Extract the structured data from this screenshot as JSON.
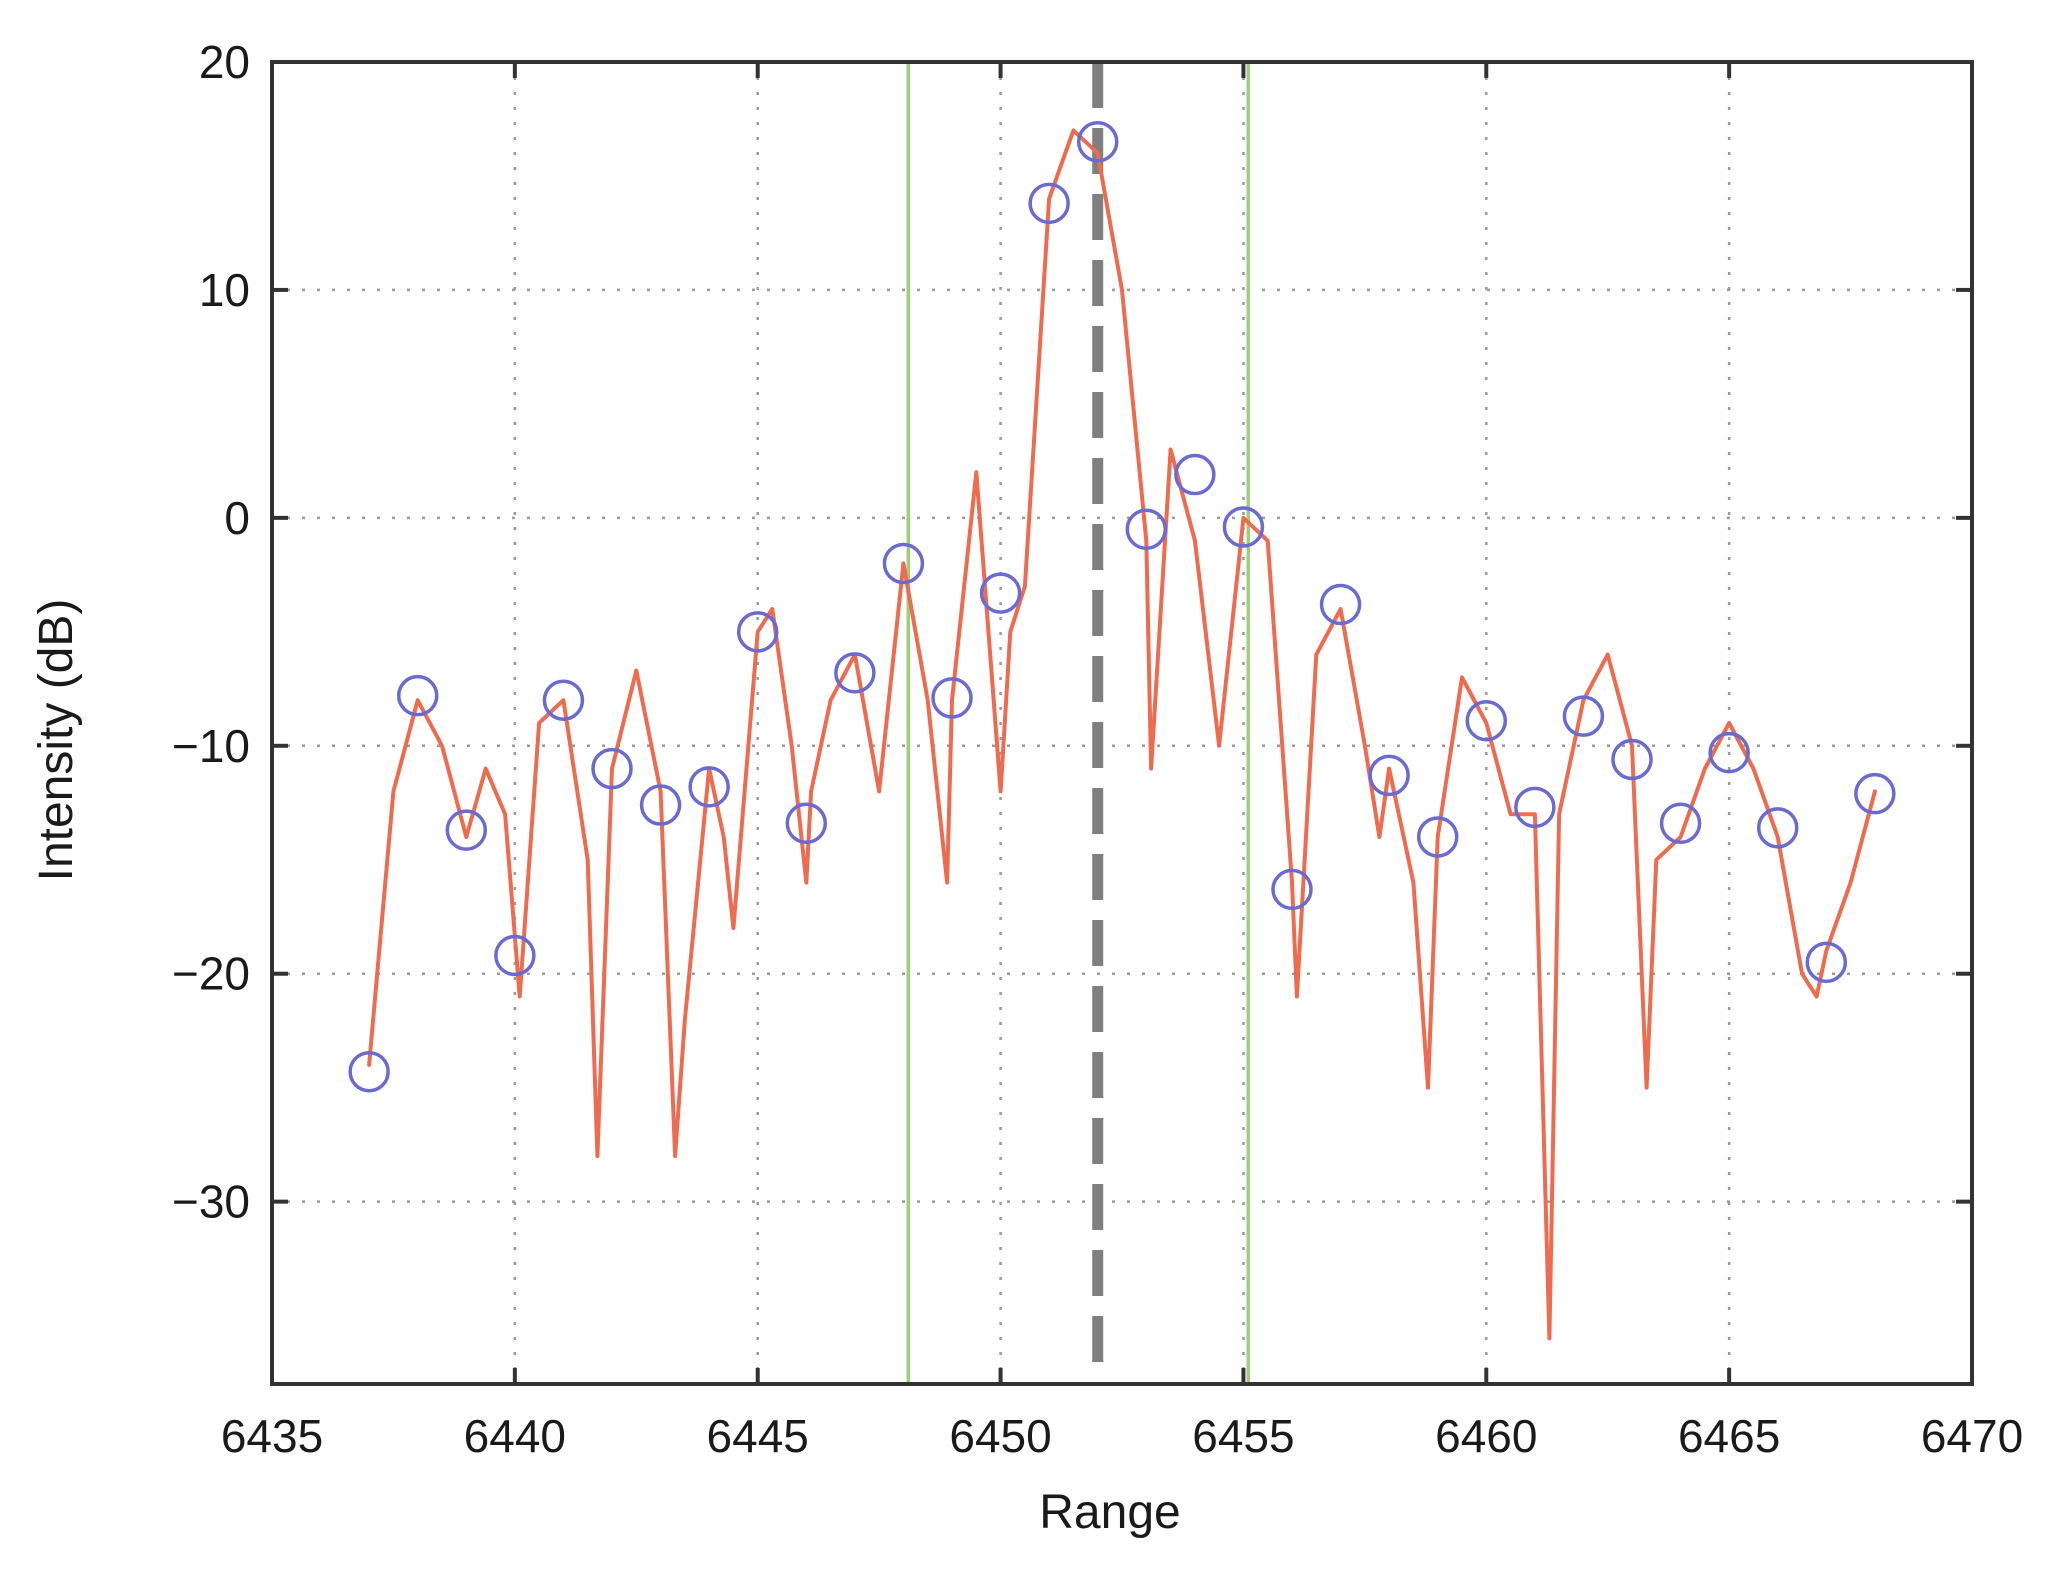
{
  "chart_data": {
    "type": "line",
    "title": "",
    "xlabel": "Range",
    "ylabel": "Intensity (dB)",
    "xlim": [
      6435,
      6470
    ],
    "ylim": [
      -38,
      20
    ],
    "xticks": [
      6435,
      6440,
      6445,
      6450,
      6455,
      6460,
      6465,
      6470
    ],
    "yticks": [
      20,
      10,
      0,
      -10,
      -20,
      -30
    ],
    "ytick_labels": [
      "20",
      "10",
      "0",
      "−10",
      "−20",
      "−30"
    ],
    "grid": true,
    "legend": "none",
    "colors": {
      "line": "#ef6b4f",
      "markers": "#6a6ad0",
      "center_line": "#7f7f7f",
      "bounds": "#9ccf7a",
      "grid": "#9a9a9a",
      "axes": "#333333"
    },
    "series": [
      {
        "kind": "line",
        "x": [
          6437,
          6437.5,
          6438,
          6438.5,
          6439,
          6439.4,
          6439.8,
          6440.1,
          6440.5,
          6441,
          6441.5,
          6441.7,
          6442,
          6442.5,
          6443,
          6443.3,
          6443.5,
          6444,
          6444.3,
          6444.5,
          6445,
          6445.3,
          6445.7,
          6446,
          6446.1,
          6446.5,
          6447,
          6447.5,
          6448,
          6448.5,
          6448.9,
          6449,
          6449.5,
          6450,
          6450.2,
          6450.5,
          6451,
          6451.5,
          6452,
          6452.5,
          6453,
          6453.1,
          6453.5,
          6454,
          6454.5,
          6454.9,
          6455,
          6455.5,
          6456,
          6456.1,
          6456.5,
          6457,
          6457.5,
          6457.8,
          6458,
          6458.5,
          6458.8,
          6459,
          6459.5,
          6460,
          6460.5,
          6461,
          6461.3,
          6461.5,
          6462,
          6462.5,
          6463,
          6463.3,
          6463.5,
          6464,
          6464.5,
          6465,
          6465.5,
          6466,
          6466.5,
          6466.8,
          6467,
          6467.5,
          6468
        ],
        "y": [
          -24,
          -12,
          -8,
          -10,
          -14,
          -11,
          -13,
          -21,
          -9,
          -8,
          -15,
          -28,
          -11,
          -6.7,
          -12,
          -28,
          -22,
          -11,
          -14,
          -18,
          -5,
          -4,
          -10,
          -16,
          -12,
          -8,
          -6,
          -12,
          -2,
          -8,
          -16,
          -8,
          2,
          -12,
          -5,
          -3,
          14,
          17,
          16,
          10,
          -1,
          -11,
          3,
          -1,
          -10,
          -2,
          0,
          -1,
          -16,
          -21,
          -6,
          -4,
          -10,
          -14,
          -11,
          -16,
          -25,
          -14,
          -7,
          -9,
          -13,
          -13,
          -36,
          -13,
          -8,
          -6,
          -10,
          -25,
          -15,
          -14,
          -11,
          -9,
          -11,
          -14,
          -20,
          -21,
          -19,
          -16,
          -12
        ]
      },
      {
        "kind": "scatter",
        "x": [
          6437,
          6438,
          6439,
          6440,
          6441,
          6442,
          6443,
          6444,
          6445,
          6446,
          6447,
          6448,
          6449,
          6450,
          6451,
          6452,
          6453,
          6454,
          6455,
          6456,
          6457,
          6458,
          6459,
          6460,
          6461,
          6462,
          6463,
          6464,
          6465,
          6466,
          6467,
          6468
        ],
        "y": [
          -24.3,
          -7.8,
          -13.7,
          -19.2,
          -8,
          -11,
          -12.6,
          -11.8,
          -5,
          -13.4,
          -6.8,
          -2,
          -7.9,
          -3.3,
          13.8,
          16.5,
          -0.5,
          1.9,
          -0.4,
          -16.3,
          -3.8,
          -11.3,
          -14,
          -8.9,
          -12.7,
          -8.7,
          -10.6,
          -13.4,
          -10.3,
          -13.6,
          -19.5,
          -12.1
        ]
      }
    ],
    "vlines": [
      {
        "x": 6448.1,
        "style": "solid",
        "color": "#9ccf7a"
      },
      {
        "x": 6452,
        "style": "dashed",
        "color": "#7f7f7f"
      },
      {
        "x": 6455.1,
        "style": "solid",
        "color": "#9ccf7a"
      }
    ]
  }
}
